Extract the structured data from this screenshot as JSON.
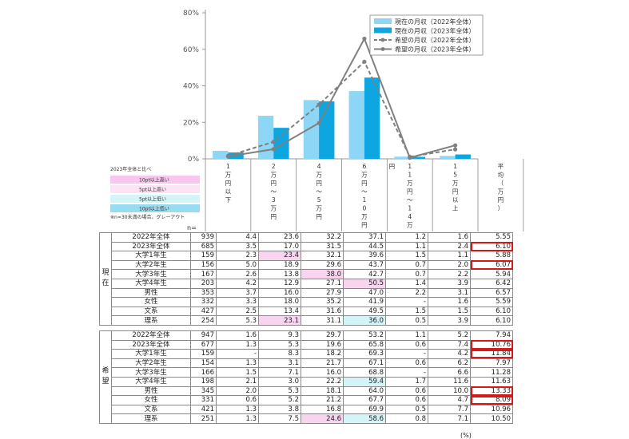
{
  "chart_data": {
    "type": "bar",
    "categories": [
      "1万円以下",
      "2万円～3万円",
      "4万円～5万円",
      "6万円～10万円",
      "11万円～14万円",
      "15万円以上"
    ],
    "category_labels": [
      [
        "1",
        "万",
        "円",
        "以",
        "下"
      ],
      [
        "2",
        "万",
        "円",
        "～",
        "3",
        "万",
        "円"
      ],
      [
        "4",
        "万",
        "円",
        "～",
        "5",
        "万",
        "円"
      ],
      [
        "6",
        "万",
        "円",
        "～",
        "1",
        "0",
        "万",
        "円"
      ],
      [
        "1",
        "1",
        "万",
        "円",
        "～",
        "1",
        "4",
        "万"
      ],
      [
        "1",
        "5",
        "万",
        "円",
        "以",
        "上"
      ]
    ],
    "extra_label_for_category_4": "円",
    "avg_column_label": [
      "平",
      "均",
      "（",
      "万",
      "円",
      "）"
    ],
    "y_ticks": [
      "0%",
      "20%",
      "40%",
      "60%",
      "80%"
    ],
    "ylim": [
      0,
      80
    ],
    "series": [
      {
        "name": "現在の月収（2022年全体）",
        "kind": "bar",
        "color": "#8dd6f6",
        "values": [
          4.4,
          23.6,
          32.2,
          37.1,
          1.2,
          1.6
        ]
      },
      {
        "name": "現在の月収（2023年全体）",
        "kind": "bar",
        "color": "#0ea6e0",
        "values": [
          3.5,
          17.0,
          31.5,
          44.5,
          1.1,
          2.4
        ]
      },
      {
        "name": "希望の月収（2022年全体）",
        "kind": "dashed-line",
        "color": "#808080",
        "values": [
          1.6,
          9.3,
          29.7,
          53.2,
          1.1,
          5.2
        ]
      },
      {
        "name": "希望の月収（2023年全体）",
        "kind": "line",
        "color": "#808080",
        "values": [
          1.3,
          5.3,
          19.6,
          65.8,
          0.6,
          7.4
        ]
      }
    ],
    "legend_placement": "top-right"
  },
  "compare_legend": {
    "title": "2023年全体と比べ",
    "items": [
      {
        "label": "10pt以上高い",
        "color": "#f8c6ee"
      },
      {
        "label": "5pt以上高い",
        "color": "#fce4f6"
      },
      {
        "label": "5pt以上低い",
        "color": "#d4f5f8"
      },
      {
        "label": "10pt以上低い",
        "color": "#98dcf2"
      }
    ],
    "note": "※n=30未満の場合、グレーアウト"
  },
  "n_header": "n=",
  "table": {
    "groups": [
      {
        "label": "現在",
        "rows": [
          {
            "label": "2022年全体",
            "n": "939",
            "vals": [
              "4.4",
              "23.6",
              "32.2",
              "37.1",
              "1.2",
              "1.6"
            ],
            "avg": "5.55",
            "hl": [],
            "hl_avg": false
          },
          {
            "label": "2023年全体",
            "n": "685",
            "vals": [
              "3.5",
              "17.0",
              "31.5",
              "44.5",
              "1.1",
              "2.4"
            ],
            "avg": "6.10",
            "hl": [],
            "hl_avg": true
          },
          {
            "label": "大学1年生",
            "n": "159",
            "vals": [
              "2.3",
              "23.4",
              "32.1",
              "39.6",
              "1.5",
              "1.1"
            ],
            "avg": "5.88",
            "hl": [
              "",
              "pink",
              "",
              "",
              "",
              ""
            ],
            "hl_avg": false
          },
          {
            "label": "大学2年生",
            "n": "156",
            "vals": [
              "5.0",
              "18.9",
              "29.6",
              "43.7",
              "0.7",
              "2.0"
            ],
            "avg": "6.07",
            "hl": [],
            "hl_avg": true
          },
          {
            "label": "大学3年生",
            "n": "167",
            "vals": [
              "2.6",
              "13.8",
              "38.0",
              "42.7",
              "0.7",
              "2.2"
            ],
            "avg": "5.94",
            "hl": [
              "",
              "",
              "pink",
              "",
              "",
              ""
            ],
            "hl_avg": false
          },
          {
            "label": "大学4年生",
            "n": "203",
            "vals": [
              "4.2",
              "12.9",
              "27.1",
              "50.5",
              "1.4",
              "3.9"
            ],
            "avg": "6.42",
            "hl": [
              "",
              "",
              "",
              "pink",
              "",
              ""
            ],
            "hl_avg": false
          },
          {
            "label": "男性",
            "n": "353",
            "vals": [
              "3.7",
              "16.0",
              "27.9",
              "47.0",
              "2.2",
              "3.1"
            ],
            "avg": "6.57",
            "hl": [],
            "hl_avg": false
          },
          {
            "label": "女性",
            "n": "332",
            "vals": [
              "3.3",
              "18.0",
              "35.2",
              "41.9",
              "-",
              "1.6"
            ],
            "avg": "5.59",
            "hl": [],
            "hl_avg": false
          },
          {
            "label": "文系",
            "n": "427",
            "vals": [
              "2.5",
              "13.4",
              "31.6",
              "49.5",
              "1.5",
              "1.5"
            ],
            "avg": "6.10",
            "hl": [],
            "hl_avg": false
          },
          {
            "label": "理系",
            "n": "254",
            "vals": [
              "5.3",
              "23.1",
              "31.1",
              "36.0",
              "0.5",
              "3.9"
            ],
            "avg": "6.10",
            "hl": [
              "",
              "pink",
              "",
              "cyan",
              "",
              ""
            ],
            "hl_avg": false
          }
        ]
      },
      {
        "label": "希望",
        "rows": [
          {
            "label": "2022年全体",
            "n": "947",
            "vals": [
              "1.6",
              "9.3",
              "29.7",
              "53.2",
              "1.1",
              "5.2"
            ],
            "avg": "7.94",
            "hl": [],
            "hl_avg": false
          },
          {
            "label": "2023年全体",
            "n": "677",
            "vals": [
              "1.3",
              "5.3",
              "19.6",
              "65.8",
              "0.6",
              "7.4"
            ],
            "avg": "10.76",
            "hl": [],
            "hl_avg": true
          },
          {
            "label": "大学1年生",
            "n": "159",
            "vals": [
              "-",
              "8.3",
              "18.2",
              "69.3",
              "-",
              "4.2"
            ],
            "avg": "11.84",
            "hl": [],
            "hl_avg": true
          },
          {
            "label": "大学2年生",
            "n": "154",
            "vals": [
              "1.3",
              "3.1",
              "21.7",
              "67.1",
              "0.6",
              "6.2"
            ],
            "avg": "7.97",
            "hl": [],
            "hl_avg": false
          },
          {
            "label": "大学3年生",
            "n": "166",
            "vals": [
              "1.5",
              "7.1",
              "16.0",
              "68.8",
              "-",
              "6.6"
            ],
            "avg": "11.28",
            "hl": [],
            "hl_avg": false
          },
          {
            "label": "大学4年生",
            "n": "198",
            "vals": [
              "2.1",
              "3.0",
              "22.2",
              "59.4",
              "1.7",
              "11.6"
            ],
            "avg": "11.63",
            "hl": [
              "",
              "",
              "",
              "cyan",
              "",
              ""
            ],
            "hl_avg": false
          },
          {
            "label": "男性",
            "n": "345",
            "vals": [
              "2.0",
              "5.3",
              "18.1",
              "64.0",
              "0.6",
              "10.0"
            ],
            "avg": "13.33",
            "hl": [],
            "hl_avg": true
          },
          {
            "label": "女性",
            "n": "331",
            "vals": [
              "0.6",
              "5.2",
              "21.2",
              "67.7",
              "0.6",
              "4.7"
            ],
            "avg": "8.09",
            "hl": [],
            "hl_avg": true
          },
          {
            "label": "文系",
            "n": "421",
            "vals": [
              "1.3",
              "3.8",
              "16.8",
              "69.9",
              "0.5",
              "7.7"
            ],
            "avg": "10.96",
            "hl": [],
            "hl_avg": false
          },
          {
            "label": "理系",
            "n": "251",
            "vals": [
              "1.3",
              "7.5",
              "24.6",
              "58.6",
              "0.8",
              "7.1"
            ],
            "avg": "10.50",
            "hl": [
              "",
              "",
              "pink",
              "cyan",
              "",
              ""
            ],
            "hl_avg": false
          }
        ]
      }
    ],
    "unit_note": "(%)"
  }
}
